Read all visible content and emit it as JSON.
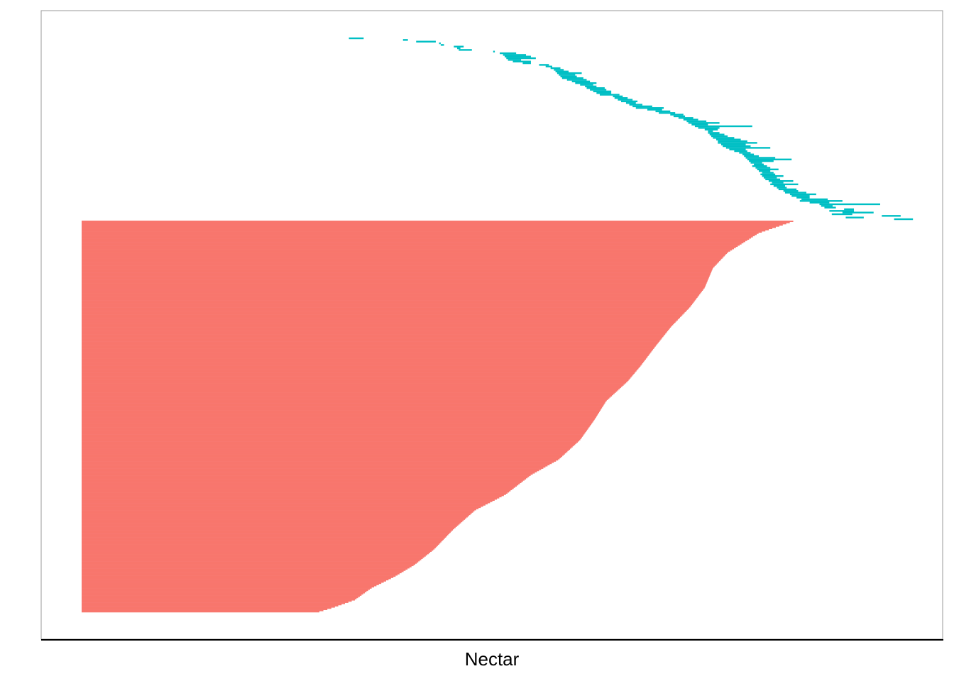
{
  "chart_data": {
    "type": "bar",
    "orientation": "horizontal",
    "title": "",
    "xlabel": "Nectar",
    "ylabel": "",
    "grid": false,
    "legend": "none",
    "xlim": [
      0,
      100
    ],
    "colors": {
      "red_group": "#F8766D",
      "teal_group": "#00BFC4",
      "frame": "#999999",
      "axis": "#000000"
    },
    "series": [
      {
        "color_key": "red_group",
        "profile": [
          [
            0,
            86.8
          ],
          [
            0.03,
            82.6
          ],
          [
            0.08,
            78.8
          ],
          [
            0.12,
            77.0
          ],
          [
            0.17,
            76.0
          ],
          [
            0.22,
            74.2
          ],
          [
            0.27,
            71.9
          ],
          [
            0.32,
            70.0
          ],
          [
            0.37,
            68.2
          ],
          [
            0.41,
            66.6
          ],
          [
            0.46,
            64.0
          ],
          [
            0.51,
            62.5
          ],
          [
            0.56,
            60.8
          ],
          [
            0.61,
            58.2
          ],
          [
            0.65,
            54.8
          ],
          [
            0.7,
            51.7
          ],
          [
            0.74,
            48.0
          ],
          [
            0.79,
            45.3
          ],
          [
            0.84,
            43.0
          ],
          [
            0.88,
            40.6
          ],
          [
            0.91,
            38.2
          ],
          [
            0.94,
            35.3
          ],
          [
            0.97,
            33.3
          ],
          [
            0.99,
            30.6
          ],
          [
            1.0,
            29.0
          ]
        ],
        "count": 330,
        "x_start": 0
      },
      {
        "color_key": "teal_group",
        "segments": [
          [
            99.1,
            101.4
          ],
          [
            93.2,
            95.4
          ],
          [
            97.6,
            99.9
          ],
          [
            91.5,
            94.0
          ],
          [
            92.8,
            96.6
          ],
          [
            91.2,
            94.2
          ],
          [
            93.0,
            94.2
          ],
          [
            90.6,
            92.0
          ],
          [
            90.2,
            91.6
          ],
          [
            90.0,
            97.4
          ],
          [
            88.8,
            91.2
          ],
          [
            87.6,
            92.8
          ],
          [
            87.8,
            91.0
          ],
          [
            87.2,
            88.8
          ],
          [
            86.6,
            88.8
          ],
          [
            86.4,
            89.6
          ],
          [
            85.8,
            88.4
          ],
          [
            85.6,
            87.4
          ],
          [
            85.0,
            87.2
          ],
          [
            84.8,
            86.0
          ],
          [
            84.4,
            85.8
          ],
          [
            84.0,
            87.4
          ],
          [
            84.2,
            85.6
          ],
          [
            83.8,
            86.8
          ],
          [
            83.4,
            85.2
          ],
          [
            83.2,
            84.8
          ],
          [
            83.0,
            85.6
          ],
          [
            82.8,
            84.6
          ],
          [
            83.0,
            84.4
          ],
          [
            82.6,
            84.0
          ],
          [
            82.4,
            85.0
          ],
          [
            82.2,
            84.0
          ],
          [
            81.8,
            83.6
          ],
          [
            82.0,
            83.2
          ],
          [
            81.6,
            83.0
          ],
          [
            81.4,
            84.4
          ],
          [
            81.2,
            86.6
          ],
          [
            81.0,
            84.6
          ],
          [
            80.8,
            82.6
          ],
          [
            80.6,
            82.0
          ],
          [
            80.2,
            81.6
          ],
          [
            79.6,
            81.2
          ],
          [
            79.0,
            81.0
          ],
          [
            78.6,
            84.0
          ],
          [
            78.2,
            81.6
          ],
          [
            78.0,
            81.0
          ],
          [
            77.6,
            82.4
          ],
          [
            77.6,
            81.2
          ],
          [
            77.4,
            80.4
          ],
          [
            77.0,
            79.6
          ],
          [
            76.8,
            78.8
          ],
          [
            76.6,
            78.4
          ],
          [
            76.4,
            77.8
          ],
          [
            76.4,
            77.0
          ],
          [
            76.0,
            77.6
          ],
          [
            75.2,
            77.8
          ],
          [
            74.8,
            81.8
          ],
          [
            74.4,
            76.4
          ],
          [
            74.0,
            77.8
          ],
          [
            73.8,
            76.2
          ],
          [
            73.4,
            75.2
          ],
          [
            72.8,
            74.6
          ],
          [
            72.2,
            73.6
          ],
          [
            71.8,
            73.4
          ],
          [
            70.4,
            72.4
          ],
          [
            70.0,
            71.8
          ],
          [
            69.0,
            70.8
          ],
          [
            67.6,
            71.0
          ],
          [
            67.2,
            69.6
          ],
          [
            66.8,
            68.4
          ],
          [
            66.4,
            67.6
          ],
          [
            65.8,
            67.8
          ],
          [
            65.4,
            67.2
          ],
          [
            65.0,
            66.6
          ],
          [
            64.8,
            66.0
          ],
          [
            63.2,
            65.6
          ],
          [
            62.8,
            64.6
          ],
          [
            62.4,
            64.6
          ],
          [
            62.0,
            64.0
          ],
          [
            61.6,
            63.8
          ],
          [
            61.4,
            62.8
          ],
          [
            60.8,
            62.4
          ],
          [
            60.2,
            62.8
          ],
          [
            59.8,
            62.0
          ],
          [
            59.2,
            61.6
          ],
          [
            58.6,
            61.2
          ],
          [
            58.4,
            60.4
          ],
          [
            58.2,
            60.2
          ],
          [
            58.0,
            61.0
          ],
          [
            57.8,
            59.4
          ],
          [
            57.6,
            58.8
          ],
          [
            57.2,
            58.4
          ],
          [
            56.6,
            57.4
          ],
          [
            55.8,
            57.0
          ],
          [
            53.8,
            54.8
          ],
          [
            52.6,
            54.8
          ],
          [
            52.0,
            53.6
          ],
          [
            51.8,
            55.4
          ],
          [
            51.6,
            54.8
          ],
          [
            51.4,
            54.2
          ],
          [
            51.0,
            53.0
          ],
          [
            50.2,
            50.4
          ],
          [
            46.0,
            47.6
          ],
          [
            45.8,
            46.2
          ],
          [
            45.4,
            46.6
          ],
          [
            43.8,
            44.2
          ],
          [
            43.6,
            43.8
          ],
          [
            40.8,
            43.2
          ],
          [
            39.2,
            39.8
          ],
          [
            32.6,
            34.4
          ]
        ]
      }
    ]
  }
}
